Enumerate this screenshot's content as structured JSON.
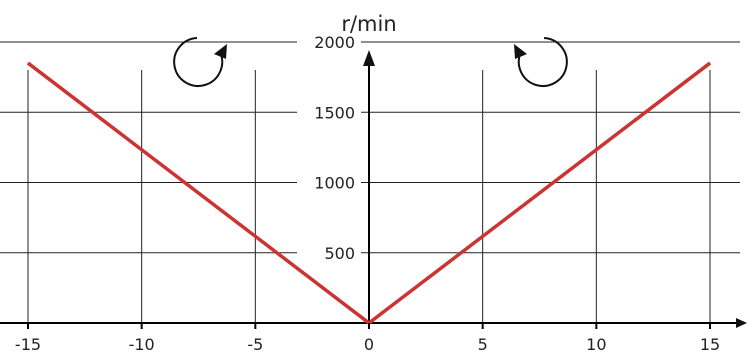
{
  "chart_data": {
    "type": "line",
    "title": "",
    "xlabel": "",
    "ylabel": "r/min",
    "xlim": [
      -15,
      15
    ],
    "ylim": [
      0,
      2000
    ],
    "x_ticks": [
      -15,
      -10,
      -5,
      0,
      5,
      10,
      15
    ],
    "x_tick_labels": [
      "-15",
      "-10",
      "-5",
      "0",
      "5",
      "10",
      "15"
    ],
    "y_ticks": [
      500,
      1000,
      1500,
      2000
    ],
    "y_tick_labels": [
      "500",
      "1000",
      "1500",
      "2000"
    ],
    "grid": true,
    "series": [
      {
        "x": [
          -15,
          0,
          15
        ],
        "y": [
          1850,
          0,
          1850
        ],
        "color": "#cc3333"
      }
    ],
    "annotations": [
      {
        "icon": "clockwise-arrow-icon",
        "side": "left"
      },
      {
        "icon": "counterclockwise-arrow-icon",
        "side": "right"
      }
    ]
  },
  "colors": {
    "series": "#cc3333",
    "grid": "#222222",
    "axis": "#000000"
  }
}
